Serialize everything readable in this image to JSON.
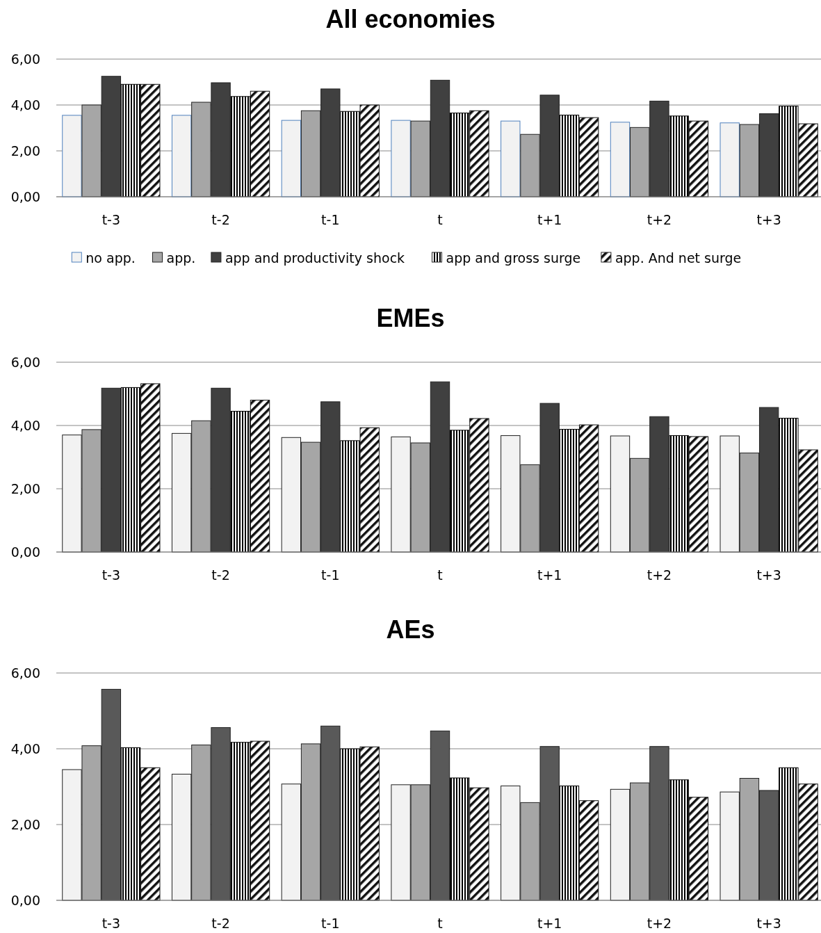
{
  "chart_data": [
    {
      "type": "bar",
      "title": "All economies",
      "categories": [
        "t-3",
        "t-2",
        "t-1",
        "t",
        "t+1",
        "t+2",
        "t+3"
      ],
      "ylim": [
        0,
        6
      ],
      "yticks": [
        {
          "value": 0,
          "label": "0,00"
        },
        {
          "value": 2,
          "label": "2,00"
        },
        {
          "value": 4,
          "label": "4,00"
        },
        {
          "value": 6,
          "label": "6,00"
        }
      ],
      "grid": "y",
      "legend": "bottom",
      "series": [
        {
          "name": "no app.",
          "color": "#f2f2f2",
          "values": [
            3.55,
            3.55,
            3.33,
            3.33,
            3.3,
            3.25,
            3.22
          ]
        },
        {
          "name": "app.",
          "color": "#a6a6a6",
          "values": [
            4.0,
            4.12,
            3.75,
            3.3,
            2.72,
            3.02,
            3.15
          ]
        },
        {
          "name": "app and productivity shock",
          "color": "#404040",
          "values": [
            5.25,
            4.97,
            4.7,
            5.08,
            4.43,
            4.17,
            3.62
          ]
        },
        {
          "name": "app and gross surge",
          "color": "#000000",
          "values": [
            4.9,
            4.37,
            3.72,
            3.65,
            3.56,
            3.52,
            3.95
          ]
        },
        {
          "name": "app. And net surge",
          "color": "#111111",
          "values": [
            4.9,
            4.6,
            4.0,
            3.75,
            3.45,
            3.3,
            3.18
          ]
        }
      ]
    },
    {
      "type": "bar",
      "title": "EMEs",
      "categories": [
        "t-3",
        "t-2",
        "t-1",
        "t",
        "t+1",
        "t+2",
        "t+3"
      ],
      "ylim": [
        0,
        6
      ],
      "yticks": [
        {
          "value": 0,
          "label": "0,00"
        },
        {
          "value": 2,
          "label": "2,00"
        },
        {
          "value": 4,
          "label": "4,00"
        },
        {
          "value": 6,
          "label": "6,00"
        }
      ],
      "grid": "y",
      "series": [
        {
          "color": "#f2f2f2",
          "values": [
            3.7,
            3.75,
            3.62,
            3.64,
            3.68,
            3.67,
            3.67
          ]
        },
        {
          "color": "#a6a6a6",
          "values": [
            3.87,
            4.15,
            3.47,
            3.45,
            2.76,
            2.96,
            3.13
          ]
        },
        {
          "color": "#404040",
          "values": [
            5.18,
            5.18,
            4.75,
            5.38,
            4.7,
            4.28,
            4.57
          ]
        },
        {
          "color": "#000000",
          "values": [
            5.2,
            4.45,
            3.52,
            3.85,
            3.88,
            3.68,
            4.23
          ]
        },
        {
          "color": "#111111",
          "values": [
            5.32,
            4.8,
            3.93,
            4.22,
            4.02,
            3.65,
            3.23
          ]
        }
      ]
    },
    {
      "type": "bar",
      "title": "AEs",
      "categories": [
        "t-3",
        "t-2",
        "t-1",
        "t",
        "t+1",
        "t+2",
        "t+3"
      ],
      "ylim": [
        0,
        6
      ],
      "yticks": [
        {
          "value": 0,
          "label": "0,00"
        },
        {
          "value": 2,
          "label": "2,00"
        },
        {
          "value": 4,
          "label": "4,00"
        },
        {
          "value": 6,
          "label": "6,00"
        }
      ],
      "grid": "y",
      "series": [
        {
          "color": "#f2f2f2",
          "values": [
            3.45,
            3.33,
            3.07,
            3.05,
            3.02,
            2.93,
            2.86
          ]
        },
        {
          "color": "#a6a6a6",
          "values": [
            4.08,
            4.1,
            4.13,
            3.05,
            2.58,
            3.1,
            3.22
          ]
        },
        {
          "color": "#595959",
          "values": [
            5.57,
            4.56,
            4.6,
            4.47,
            4.06,
            4.06,
            2.9
          ]
        },
        {
          "color": "#000000",
          "values": [
            4.03,
            4.17,
            4.0,
            3.23,
            3.02,
            3.18,
            3.5
          ]
        },
        {
          "color": "#111111",
          "values": [
            3.5,
            4.2,
            4.05,
            2.97,
            2.63,
            2.72,
            3.07
          ]
        }
      ]
    }
  ]
}
